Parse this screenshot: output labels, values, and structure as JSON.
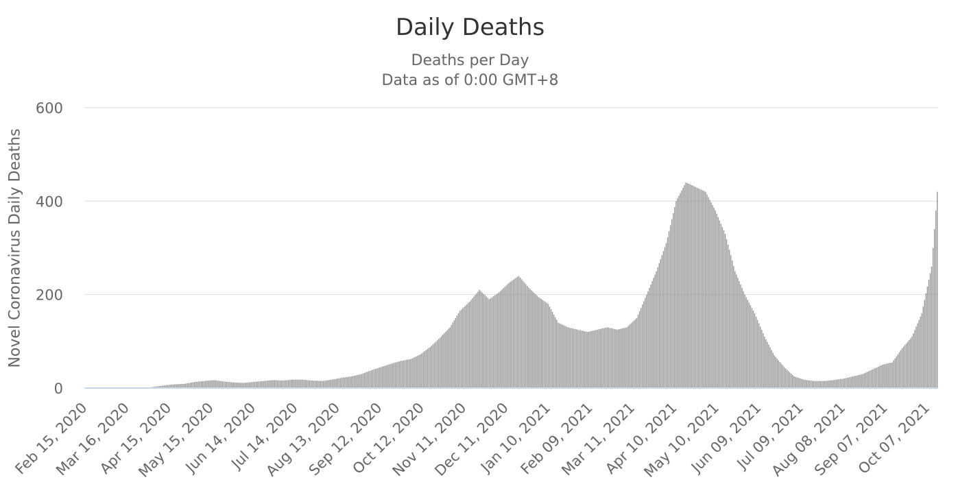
{
  "chart_data": {
    "type": "bar",
    "title": "Daily Deaths",
    "subtitle": [
      "Deaths per Day",
      "Data as of 0:00 GMT+8"
    ],
    "ylabel": "Novel Coronavirus Daily Deaths",
    "xlabel": "",
    "ylim": [
      0,
      600
    ],
    "yticks": [
      0,
      200,
      400,
      600
    ],
    "xticks": [
      "Feb 15, 2020",
      "Mar 16, 2020",
      "Apr 15, 2020",
      "May 15, 2020",
      "Jun 14, 2020",
      "Jul 14, 2020",
      "Aug 13, 2020",
      "Sep 12, 2020",
      "Oct 12, 2020",
      "Nov 11, 2020",
      "Dec 11, 2020",
      "Jan 10, 2021",
      "Feb 09, 2021",
      "Mar 11, 2021",
      "Apr 10, 2021",
      "May 10, 2021",
      "Jun 09, 2021",
      "Jul 09, 2021",
      "Aug 08, 2021",
      "Sep 07, 2021",
      "Oct 07, 2021"
    ],
    "grid": true,
    "bar_color": "#999999",
    "series": [
      {
        "x": [
          "Feb 15, 2020",
          "Feb 22, 2020",
          "Mar 01, 2020",
          "Mar 08, 2020",
          "Mar 15, 2020",
          "Mar 22, 2020",
          "Mar 29, 2020",
          "Apr 05, 2020",
          "Apr 12, 2020",
          "Apr 19, 2020",
          "Apr 26, 2020",
          "May 03, 2020",
          "May 10, 2020",
          "May 17, 2020",
          "May 24, 2020",
          "May 31, 2020",
          "Jun 07, 2020",
          "Jun 14, 2020",
          "Jun 21, 2020",
          "Jun 28, 2020",
          "Jul 05, 2020",
          "Jul 12, 2020",
          "Jul 19, 2020",
          "Jul 26, 2020",
          "Aug 02, 2020",
          "Aug 09, 2020",
          "Aug 16, 2020",
          "Aug 23, 2020",
          "Aug 30, 2020",
          "Sep 06, 2020",
          "Sep 13, 2020",
          "Sep 20, 2020",
          "Sep 27, 2020",
          "Oct 04, 2020",
          "Oct 11, 2020",
          "Oct 18, 2020",
          "Oct 25, 2020",
          "Nov 01, 2020",
          "Nov 08, 2020",
          "Nov 15, 2020",
          "Nov 22, 2020",
          "Nov 29, 2020",
          "Dec 06, 2020",
          "Dec 13, 2020",
          "Dec 20, 2020",
          "Dec 27, 2020",
          "Jan 03, 2021",
          "Jan 10, 2021",
          "Jan 17, 2021",
          "Jan 24, 2021",
          "Jan 31, 2021",
          "Feb 07, 2021",
          "Feb 14, 2021",
          "Feb 21, 2021",
          "Feb 28, 2021",
          "Mar 07, 2021",
          "Mar 14, 2021",
          "Mar 21, 2021",
          "Mar 28, 2021",
          "Apr 04, 2021",
          "Apr 11, 2021",
          "Apr 18, 2021",
          "Apr 25, 2021",
          "May 02, 2021",
          "May 09, 2021",
          "May 16, 2021",
          "May 23, 2021",
          "May 30, 2021",
          "Jun 06, 2021",
          "Jun 13, 2021",
          "Jun 20, 2021",
          "Jun 27, 2021",
          "Jul 04, 2021",
          "Jul 11, 2021",
          "Jul 18, 2021",
          "Jul 25, 2021",
          "Aug 01, 2021",
          "Aug 08, 2021",
          "Aug 15, 2021",
          "Aug 22, 2021",
          "Aug 29, 2021",
          "Sep 05, 2021",
          "Sep 12, 2021",
          "Sep 19, 2021",
          "Sep 26, 2021",
          "Oct 03, 2021",
          "Oct 10, 2021",
          "Oct 14, 2021"
        ],
        "y": [
          0,
          0,
          0,
          0,
          0,
          0,
          0,
          3,
          6,
          8,
          9,
          13,
          15,
          17,
          14,
          12,
          11,
          13,
          15,
          17,
          16,
          18,
          18,
          16,
          15,
          18,
          22,
          25,
          30,
          38,
          45,
          52,
          58,
          62,
          72,
          88,
          108,
          130,
          165,
          185,
          210,
          190,
          205,
          225,
          240,
          215,
          195,
          180,
          140,
          130,
          125,
          120,
          125,
          130,
          125,
          130,
          150,
          200,
          250,
          310,
          400,
          440,
          430,
          420,
          380,
          330,
          250,
          200,
          160,
          110,
          70,
          45,
          25,
          18,
          15,
          15,
          17,
          20,
          25,
          30,
          40,
          50,
          55,
          85,
          110,
          160,
          260,
          420
        ]
      }
    ]
  }
}
